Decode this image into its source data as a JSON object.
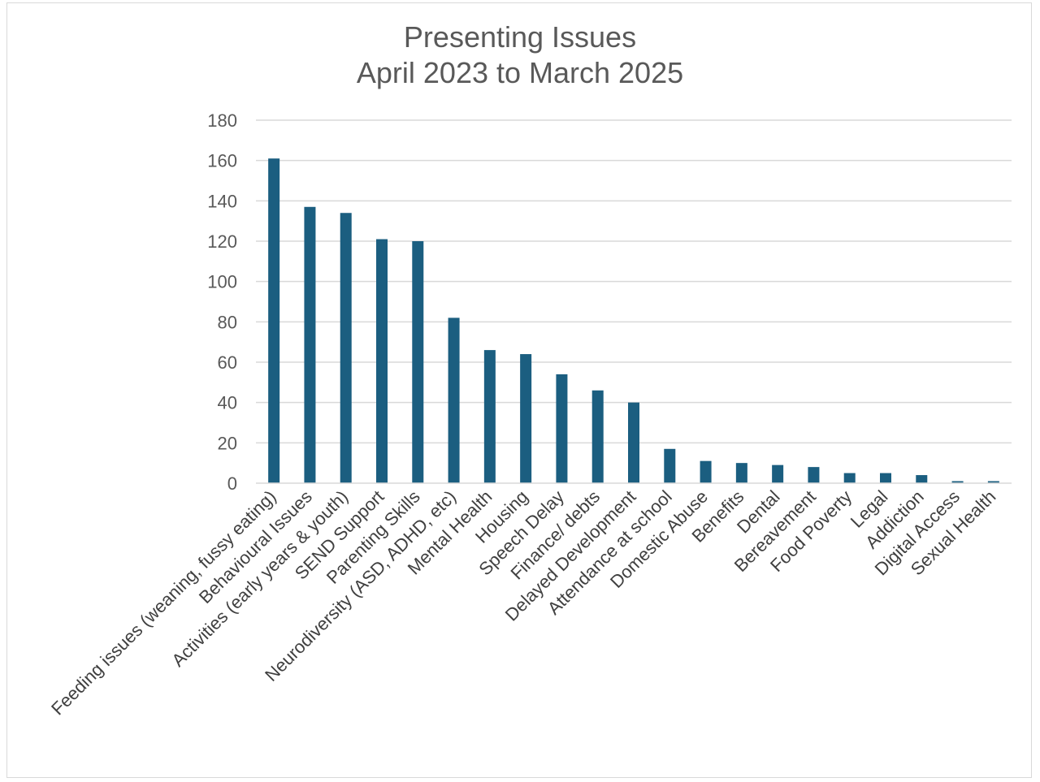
{
  "chart_data": {
    "type": "bar",
    "title_lines": [
      "Presenting Issues",
      "April 2023 to March 2025"
    ],
    "categories": [
      "Feeding issues (weaning, fussy eating)",
      "Behavioural Issues",
      "Activities (early years & youth)",
      "SEND Support",
      "Parenting Skills",
      "Neurodiversity (ASD, ADHD, etc)",
      "Mental Health",
      "Housing",
      "Speech Delay",
      "Finance/ debts",
      "Delayed Development",
      "Attendance at school",
      "Domestic Abuse",
      "Benefits",
      "Dental",
      "Bereavement",
      "Food Poverty",
      "Legal",
      "Addiction",
      "Digital Access",
      "Sexual Health"
    ],
    "values": [
      161,
      137,
      134,
      121,
      120,
      82,
      66,
      64,
      54,
      46,
      40,
      17,
      11,
      10,
      9,
      8,
      5,
      5,
      4,
      1,
      1
    ],
    "ylim": [
      0,
      180
    ],
    "yticks": [
      0,
      20,
      40,
      60,
      80,
      100,
      120,
      140,
      160,
      180
    ],
    "grid": true,
    "legend": "none",
    "colors": {
      "bar": "#1b5e80",
      "grid": "#d9d9d9",
      "text": "#595959"
    }
  }
}
